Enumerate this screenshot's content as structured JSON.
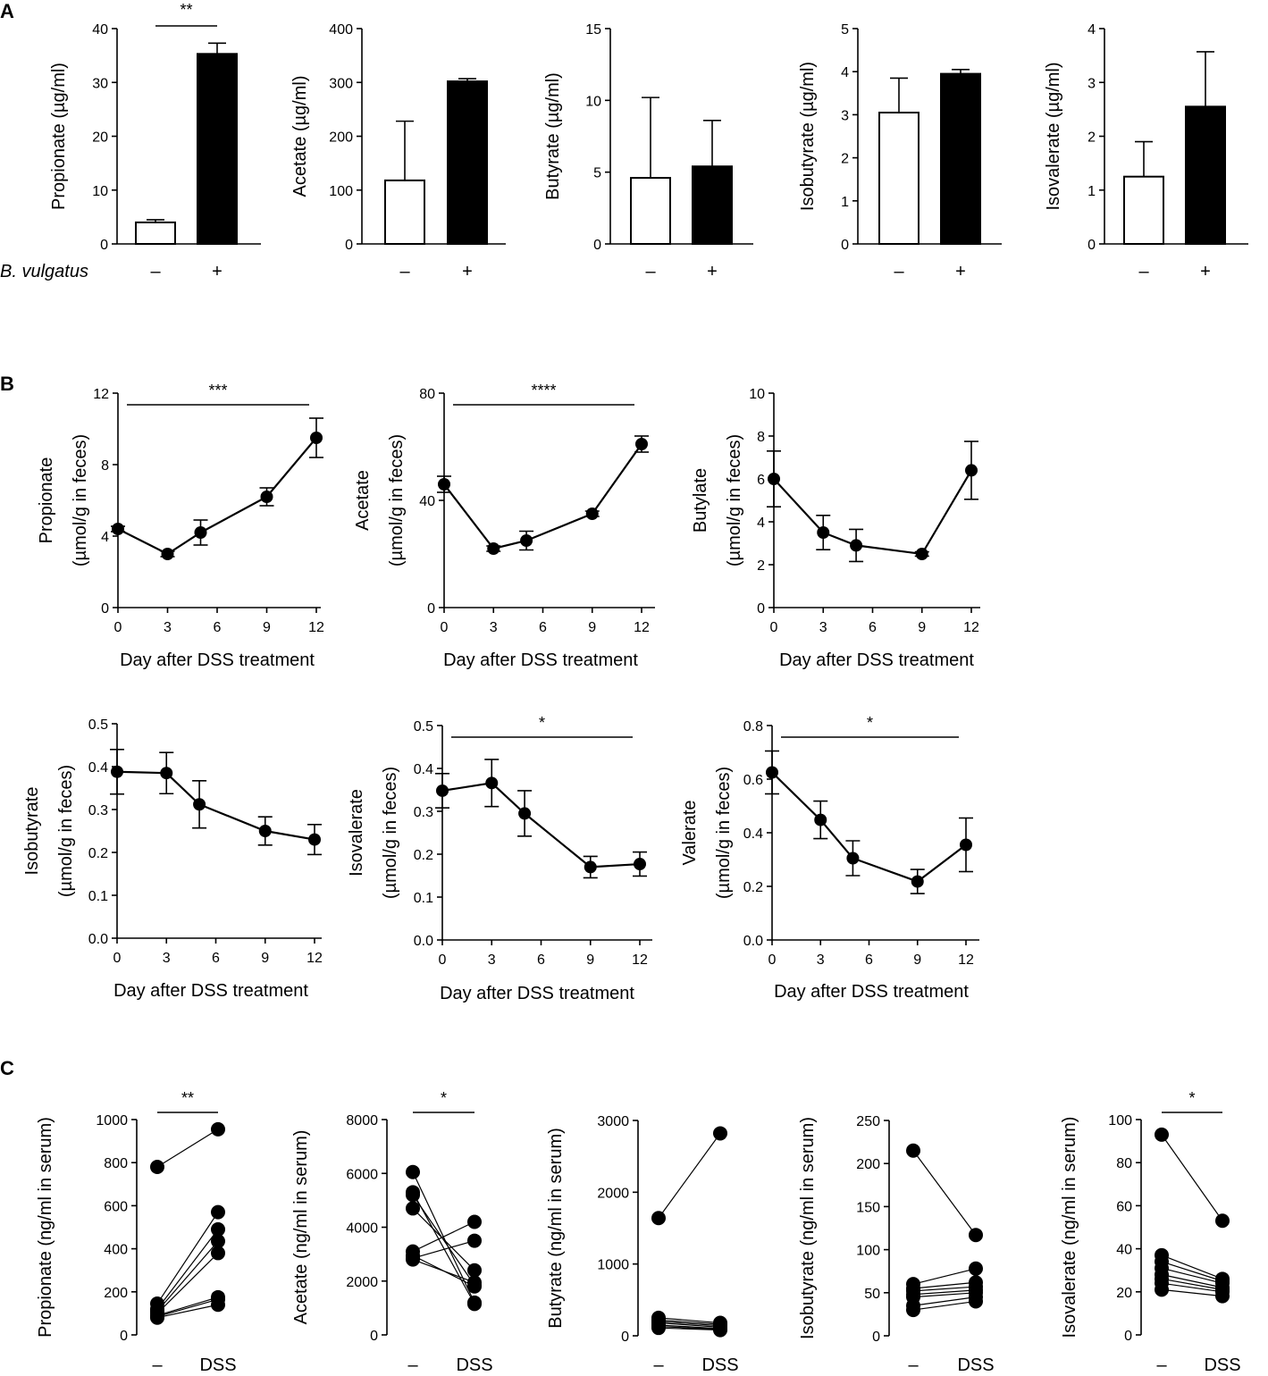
{
  "panel_labels": [
    "A",
    "B",
    "C"
  ],
  "chart_data": [
    {
      "id": "A1",
      "panel": "A",
      "type": "bar",
      "categories": [
        "–",
        "+"
      ],
      "values": [
        4.0,
        35.3
      ],
      "errors": [
        0.5,
        2.0
      ],
      "fills": [
        "#ffffff",
        "#000000"
      ],
      "ylabel": "Propionate (µg/ml)",
      "ylim": [
        0,
        40
      ],
      "yticks": [
        0,
        10,
        20,
        30,
        40
      ],
      "significance": "**",
      "row_label": "B. vulgatus"
    },
    {
      "id": "A2",
      "panel": "A",
      "type": "bar",
      "categories": [
        "–",
        "+"
      ],
      "values": [
        118,
        302
      ],
      "errors": [
        110,
        5
      ],
      "fills": [
        "#ffffff",
        "#000000"
      ],
      "ylabel": "Acetate (µg/ml)",
      "ylim": [
        0,
        400
      ],
      "yticks": [
        0,
        100,
        200,
        300,
        400
      ]
    },
    {
      "id": "A3",
      "panel": "A",
      "type": "bar",
      "categories": [
        "–",
        "+"
      ],
      "values": [
        4.6,
        5.4
      ],
      "errors": [
        5.6,
        3.2
      ],
      "fills": [
        "#ffffff",
        "#000000"
      ],
      "ylabel": "Butyrate (µg/ml)",
      "ylim": [
        0,
        15
      ],
      "yticks": [
        0,
        5,
        10,
        15
      ]
    },
    {
      "id": "A4",
      "panel": "A",
      "type": "bar",
      "categories": [
        "–",
        "+"
      ],
      "values": [
        3.05,
        3.95
      ],
      "errors": [
        0.8,
        0.1
      ],
      "fills": [
        "#ffffff",
        "#000000"
      ],
      "ylabel": "Isobutyrate (µg/ml)",
      "ylim": [
        0,
        5
      ],
      "yticks": [
        0,
        1,
        2,
        3,
        4,
        5
      ]
    },
    {
      "id": "A5",
      "panel": "A",
      "type": "bar",
      "categories": [
        "–",
        "+"
      ],
      "values": [
        1.25,
        2.55
      ],
      "errors": [
        0.65,
        1.02
      ],
      "fills": [
        "#ffffff",
        "#000000"
      ],
      "ylabel": "Isovalerate (µg/ml)",
      "ylim": [
        0,
        4
      ],
      "yticks": [
        0,
        1,
        2,
        3,
        4
      ]
    },
    {
      "id": "B1",
      "panel": "B",
      "type": "line",
      "x": [
        0,
        3,
        5,
        9,
        12
      ],
      "y": [
        4.4,
        3.0,
        4.2,
        6.2,
        9.5
      ],
      "err": [
        0.15,
        0.15,
        0.7,
        0.5,
        1.1
      ],
      "ylabel": [
        "Propionate",
        "(µmol/g in feces)"
      ],
      "xlabel": "Day after DSS treatment",
      "ylim": [
        0,
        12
      ],
      "yticks": [
        0,
        4,
        8,
        12
      ],
      "xticks": [
        0,
        3,
        6,
        9,
        12
      ],
      "significance": "***"
    },
    {
      "id": "B2",
      "panel": "B",
      "type": "line",
      "x": [
        0,
        3,
        5,
        9,
        12
      ],
      "y": [
        46,
        22,
        25,
        35,
        61
      ],
      "err": [
        3,
        1,
        3.5,
        1,
        3
      ],
      "ylabel": [
        "Acetate",
        "(µmol/g in feces)"
      ],
      "xlabel": "Day after DSS treatment",
      "ylim": [
        0,
        80
      ],
      "yticks": [
        0,
        40,
        80
      ],
      "xticks": [
        0,
        3,
        6,
        9,
        12
      ],
      "significance": "****"
    },
    {
      "id": "B3",
      "panel": "B",
      "type": "line",
      "x": [
        0,
        3,
        5,
        9,
        12
      ],
      "y": [
        6.0,
        3.5,
        2.9,
        2.5,
        6.4
      ],
      "err": [
        1.3,
        0.8,
        0.75,
        0.1,
        1.35
      ],
      "ylabel": [
        "Butylate",
        "(µmol/g in feces)"
      ],
      "xlabel": "Day after DSS treatment",
      "ylim": [
        0,
        10
      ],
      "yticks": [
        0,
        2,
        4,
        6,
        8,
        10
      ],
      "xticks": [
        0,
        3,
        6,
        9,
        12
      ]
    },
    {
      "id": "B4",
      "panel": "B",
      "type": "line",
      "x": [
        0,
        3,
        5,
        9,
        12
      ],
      "y": [
        0.388,
        0.385,
        0.312,
        0.25,
        0.23
      ],
      "err": [
        0.052,
        0.048,
        0.055,
        0.033,
        0.035
      ],
      "ylabel": [
        "Isobutyrate",
        "(µmol/g in feces)"
      ],
      "xlabel": "Day after DSS treatment",
      "ylim": [
        0,
        0.5
      ],
      "yticks": [
        0.0,
        0.1,
        0.2,
        0.3,
        0.4,
        0.5
      ],
      "xticks": [
        0,
        3,
        6,
        9,
        12
      ]
    },
    {
      "id": "B5",
      "panel": "B",
      "type": "line",
      "x": [
        0,
        3,
        5,
        9,
        12
      ],
      "y": [
        0.348,
        0.366,
        0.295,
        0.17,
        0.177
      ],
      "err": [
        0.04,
        0.055,
        0.053,
        0.025,
        0.028
      ],
      "ylabel": [
        "Isovalerate",
        "(µmol/g in feces)"
      ],
      "xlabel": "Day after DSS treatment",
      "ylim": [
        0,
        0.5
      ],
      "yticks": [
        0.0,
        0.1,
        0.2,
        0.3,
        0.4,
        0.5
      ],
      "xticks": [
        0,
        3,
        6,
        9,
        12
      ],
      "significance": "*"
    },
    {
      "id": "B6",
      "panel": "B",
      "type": "line",
      "x": [
        0,
        3,
        5,
        9,
        12
      ],
      "y": [
        0.625,
        0.448,
        0.305,
        0.218,
        0.355
      ],
      "err": [
        0.08,
        0.07,
        0.065,
        0.045,
        0.1
      ],
      "ylabel": [
        "Valerate",
        "(µmol/g in feces)"
      ],
      "xlabel": "Day after DSS treatment",
      "ylim": [
        0,
        0.8
      ],
      "yticks": [
        0.0,
        0.2,
        0.4,
        0.6,
        0.8
      ],
      "xticks": [
        0,
        3,
        6,
        9,
        12
      ],
      "significance": "*"
    },
    {
      "id": "C1",
      "panel": "C",
      "type": "scatter",
      "categories": [
        "–",
        "DSS"
      ],
      "pairs": [
        [
          780,
          955
        ],
        [
          145,
          570
        ],
        [
          120,
          490
        ],
        [
          110,
          435
        ],
        [
          100,
          380
        ],
        [
          90,
          175
        ],
        [
          85,
          165
        ],
        [
          80,
          140
        ]
      ],
      "ylabel": "Propionate (ng/ml in serum)",
      "ylim": [
        0,
        1000
      ],
      "yticks": [
        0,
        200,
        400,
        600,
        800,
        1000
      ],
      "significance": "**"
    },
    {
      "id": "C2",
      "panel": "C",
      "type": "scatter",
      "categories": [
        "–",
        "DSS"
      ],
      "pairs": [
        [
          6050,
          1200
        ],
        [
          5300,
          1150
        ],
        [
          5200,
          1850
        ],
        [
          4700,
          2400
        ],
        [
          3100,
          4200
        ],
        [
          2950,
          1800
        ],
        [
          2850,
          3500
        ],
        [
          2800,
          1950
        ]
      ],
      "ylabel": "Acetate (ng/ml in serum)",
      "ylim": [
        0,
        8000
      ],
      "yticks": [
        0,
        2000,
        4000,
        6000,
        8000
      ],
      "significance": "*"
    },
    {
      "id": "C3",
      "panel": "C",
      "type": "scatter",
      "categories": [
        "–",
        "DSS"
      ],
      "pairs": [
        [
          1640,
          2820
        ],
        [
          250,
          180
        ],
        [
          220,
          160
        ],
        [
          200,
          140
        ],
        [
          180,
          120
        ],
        [
          150,
          100
        ],
        [
          130,
          90
        ],
        [
          110,
          80
        ]
      ],
      "ylabel": "Butyrate (ng/ml in serum)",
      "ylim": [
        0,
        3000
      ],
      "yticks": [
        0,
        1000,
        2000,
        3000
      ]
    },
    {
      "id": "C4",
      "panel": "C",
      "type": "scatter",
      "categories": [
        "–",
        "DSS"
      ],
      "pairs": [
        [
          215,
          117
        ],
        [
          60,
          78
        ],
        [
          55,
          62
        ],
        [
          52,
          57
        ],
        [
          48,
          53
        ],
        [
          45,
          50
        ],
        [
          35,
          45
        ],
        [
          30,
          40
        ]
      ],
      "ylabel": "Isobutyrate (ng/ml in serum)",
      "ylim": [
        0,
        250
      ],
      "yticks": [
        0,
        50,
        100,
        150,
        200,
        250
      ],
      "significance_note": ""
    },
    {
      "id": "C5",
      "panel": "C",
      "type": "scatter",
      "categories": [
        "–",
        "DSS"
      ],
      "pairs": [
        [
          93,
          53
        ],
        [
          37,
          26
        ],
        [
          34,
          25
        ],
        [
          31,
          24
        ],
        [
          28,
          22
        ],
        [
          26,
          21
        ],
        [
          24,
          20
        ],
        [
          21,
          18
        ]
      ],
      "ylabel": "Isovalerate (ng/ml in serum)",
      "ylim": [
        0,
        100
      ],
      "yticks": [
        0,
        20,
        40,
        60,
        80,
        100
      ],
      "significance": "*"
    }
  ]
}
